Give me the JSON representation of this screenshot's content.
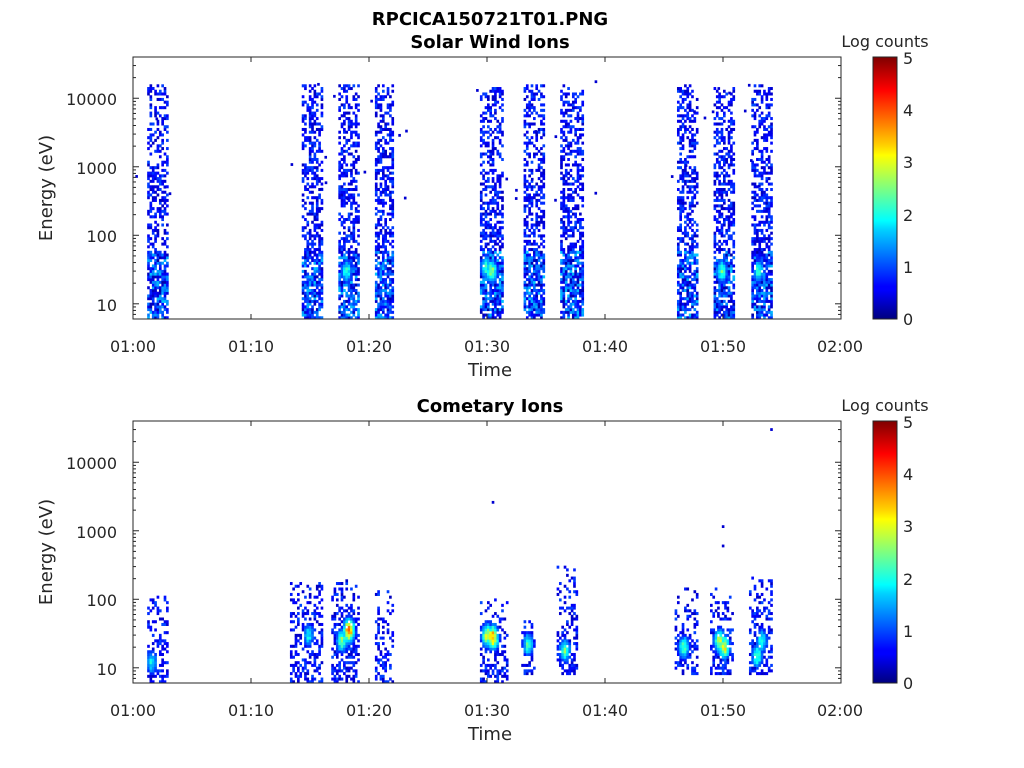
{
  "figure": {
    "title": "RPCICA150721T01.PNG"
  },
  "chart_data": [
    {
      "type": "heatmap",
      "title": "Solar Wind Ions",
      "xlabel": "Time",
      "ylabel": "Energy (eV)",
      "x_ticks": [
        "01:00",
        "01:10",
        "01:20",
        "01:30",
        "01:40",
        "01:50",
        "02:00"
      ],
      "x_range_minutes": [
        0,
        60
      ],
      "y_scale": "log",
      "y_ticks": [
        "10",
        "100",
        "1000",
        "10000"
      ],
      "y_range": [
        6,
        40000
      ],
      "colorbar": {
        "label": "Log counts",
        "ticks": [
          "0",
          "1",
          "2",
          "3",
          "4",
          "5"
        ],
        "range": [
          0,
          5
        ],
        "colormap": "jet"
      },
      "bursts": [
        {
          "start": 1.2,
          "end": 2.9,
          "emin": 6,
          "emax": 16000,
          "hot": []
        },
        {
          "start": 14.3,
          "end": 15.9,
          "emin": 6,
          "emax": 16000,
          "hot": []
        },
        {
          "start": 17.4,
          "end": 19.1,
          "emin": 6,
          "emax": 16000,
          "hot": [
            [
              18.0,
              30,
              2.2
            ]
          ]
        },
        {
          "start": 20.5,
          "end": 22.0,
          "emin": 6,
          "emax": 16000,
          "hot": []
        },
        {
          "start": 29.4,
          "end": 31.3,
          "emin": 6,
          "emax": 16000,
          "hot": [
            [
              29.8,
              35,
              2.3
            ],
            [
              30.3,
              30,
              2.7
            ]
          ]
        },
        {
          "start": 33.1,
          "end": 34.9,
          "emin": 6,
          "emax": 16000,
          "hot": []
        },
        {
          "start": 36.2,
          "end": 38.1,
          "emin": 6,
          "emax": 16000,
          "hot": []
        },
        {
          "start": 46.1,
          "end": 47.9,
          "emin": 6,
          "emax": 16000,
          "hot": []
        },
        {
          "start": 49.2,
          "end": 50.9,
          "emin": 6,
          "emax": 16000,
          "hot": [
            [
              49.8,
              30,
              2.4
            ]
          ]
        },
        {
          "start": 52.4,
          "end": 54.1,
          "emin": 6,
          "emax": 16000,
          "hot": [
            [
              52.9,
              30,
              2.2
            ]
          ]
        }
      ]
    },
    {
      "type": "heatmap",
      "title": "Cometary Ions",
      "xlabel": "Time",
      "ylabel": "Energy (eV)",
      "x_ticks": [
        "01:00",
        "01:10",
        "01:20",
        "01:30",
        "01:40",
        "01:50",
        "02:00"
      ],
      "x_range_minutes": [
        0,
        60
      ],
      "y_scale": "log",
      "y_ticks": [
        "10",
        "100",
        "1000",
        "10000"
      ],
      "y_range": [
        6,
        40000
      ],
      "colorbar": {
        "label": "Log counts",
        "ticks": [
          "0",
          "1",
          "2",
          "3",
          "4",
          "5"
        ],
        "range": [
          0,
          5
        ],
        "colormap": "jet"
      },
      "bursts": [
        {
          "start": 1.2,
          "end": 2.9,
          "emin": 6,
          "emax": 160,
          "hot": [
            [
              1.5,
              12,
              2.0
            ]
          ]
        },
        {
          "start": 13.3,
          "end": 15.9,
          "emin": 6,
          "emax": 200,
          "hot": [
            [
              14.8,
              30,
              2.0
            ]
          ]
        },
        {
          "start": 16.8,
          "end": 19.1,
          "emin": 6,
          "emax": 200,
          "hot": [
            [
              17.6,
              25,
              2.6
            ],
            [
              18.2,
              35,
              4.0
            ]
          ]
        },
        {
          "start": 20.5,
          "end": 22.0,
          "emin": 6,
          "emax": 130,
          "hot": []
        },
        {
          "start": 29.4,
          "end": 31.6,
          "emin": 6,
          "emax": 100,
          "hot": [
            [
              29.9,
              30,
              3.0
            ],
            [
              30.4,
              28,
              3.8
            ]
          ]
        },
        {
          "start": 32.9,
          "end": 34.0,
          "emin": 8,
          "emax": 50,
          "hot": [
            [
              33.4,
              22,
              2.3
            ]
          ]
        },
        {
          "start": 35.9,
          "end": 37.6,
          "emin": 8,
          "emax": 300,
          "hot": [
            [
              36.5,
              18,
              2.5
            ]
          ]
        },
        {
          "start": 45.9,
          "end": 47.9,
          "emin": 8,
          "emax": 150,
          "hot": [
            [
              46.6,
              20,
              2.4
            ]
          ]
        },
        {
          "start": 48.9,
          "end": 50.9,
          "emin": 8,
          "emax": 150,
          "hot": [
            [
              49.6,
              25,
              3.0
            ],
            [
              50.0,
              20,
              3.2
            ]
          ]
        },
        {
          "start": 52.2,
          "end": 54.1,
          "emin": 8,
          "emax": 220,
          "hot": [
            [
              52.8,
              15,
              2.4
            ],
            [
              53.2,
              25,
              2.2
            ]
          ]
        }
      ],
      "outliers": [
        [
          30.4,
          2600
        ],
        [
          49.9,
          1150
        ],
        [
          49.9,
          600
        ],
        [
          54.0,
          30000
        ]
      ]
    }
  ]
}
